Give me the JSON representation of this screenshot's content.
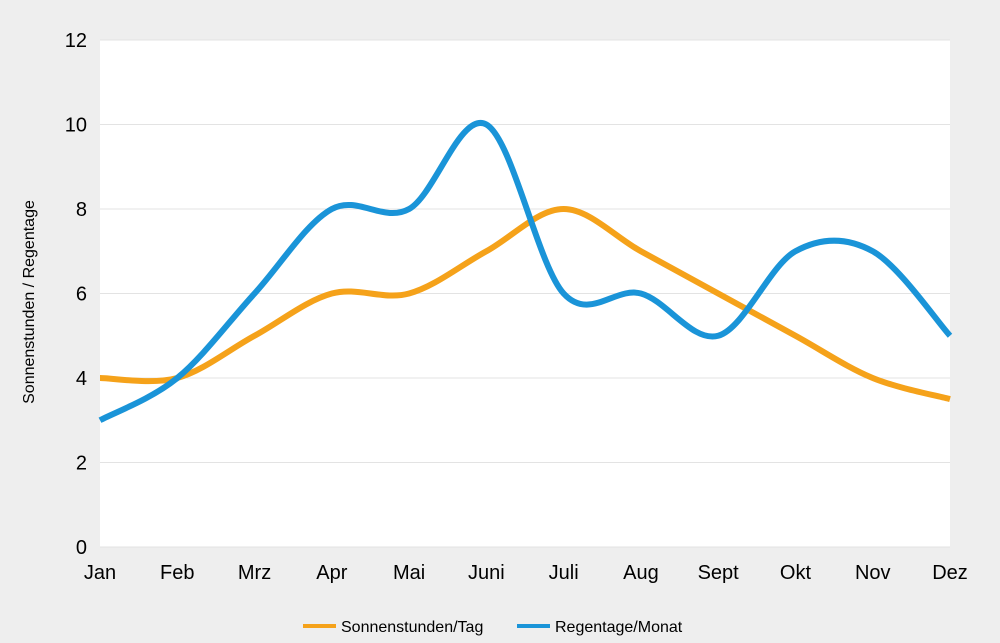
{
  "chart_data": {
    "type": "line",
    "categories": [
      "Jan",
      "Feb",
      "Mrz",
      "Apr",
      "Mai",
      "Juni",
      "Juli",
      "Aug",
      "Sept",
      "Okt",
      "Nov",
      "Dez"
    ],
    "series": [
      {
        "name": "Sonnenstunden/Tag",
        "color": "#f5a21a",
        "values": [
          4,
          4,
          5,
          6,
          6,
          7,
          8,
          7,
          6,
          5,
          4,
          3.5
        ]
      },
      {
        "name": "Regentage/Monat",
        "color": "#1a94d8",
        "values": [
          3,
          4,
          6,
          8,
          8,
          10,
          6,
          6,
          5,
          7,
          7,
          5
        ]
      }
    ],
    "title": "",
    "xlabel": "",
    "ylabel": "Sonnenstunden / Regentage",
    "ylim": [
      0,
      12
    ],
    "yticks": [
      "0",
      "2",
      "4",
      "6",
      "8",
      "10",
      "12"
    ],
    "grid": true,
    "legend_position": "bottom"
  }
}
